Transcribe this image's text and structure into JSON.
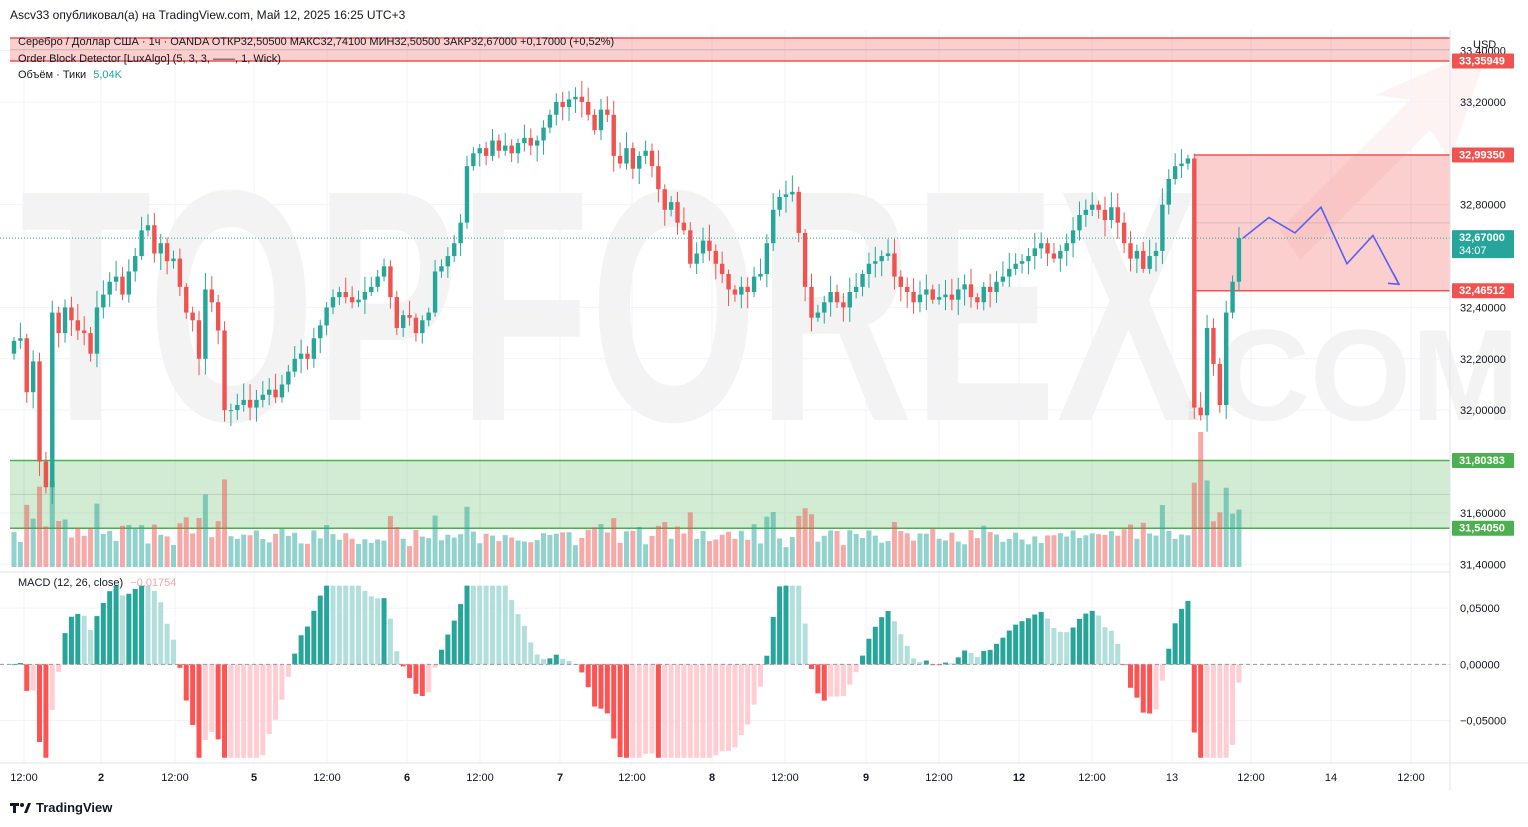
{
  "header": "Ascv33 опубликовал(а) на TradingView.com, Май 12, 2025 16:25 UTC+3",
  "legend": {
    "main": "Серебро / Доллар США · 1ч · OANDA  ОТКР32,50500  МАКС32,74100  МИН32,50500  ЗАКР32,67000  +0,17000 (+0,52%)",
    "indicator": "Order Block Detector [LuxAlgo] (5, 3, 3, ——, 1, Wick)",
    "volume_label": "Объём · Тики",
    "volume_value": "5,04K",
    "macd_label": "MACD (12, 26, close)",
    "macd_value": "−0,01754"
  },
  "footer": {
    "brand": "TradingView"
  },
  "watermark": {
    "text": "TOPFOREX",
    "suffix": ".COM"
  },
  "colors": {
    "up": "#26a69a",
    "down": "#ef5350",
    "bear_zone": "#ef5350",
    "bull_zone": "#4caf50",
    "arrow": "#5a5ff0"
  },
  "chart_data": {
    "type": "candlestick",
    "currency": "USD",
    "ylim": [
      31.37,
      33.48
    ],
    "macd_ylim": [
      -0.085,
      0.075
    ],
    "y_ticks": [
      "33,40000",
      "33,20000",
      "32,80000",
      "32,40000",
      "32,20000",
      "32,00000",
      "31,60000",
      "31,40000"
    ],
    "y_tick_values": [
      33.4,
      33.2,
      32.8,
      32.4,
      32.2,
      32.0,
      31.6,
      31.4
    ],
    "macd_ticks": [
      "0,05000",
      "0,00000",
      "−0,05000"
    ],
    "macd_tick_values": [
      0.05,
      0.0,
      -0.05
    ],
    "x_labels": [
      "12:00",
      "2",
      "12:00",
      "5",
      "12:00",
      "6",
      "12:00",
      "7",
      "12:00",
      "8",
      "12:00",
      "9",
      "12:00",
      "12",
      "12:00",
      "13",
      "12:00",
      "14",
      "12:00"
    ],
    "x_label_bold": [
      false,
      true,
      false,
      true,
      false,
      true,
      false,
      true,
      false,
      true,
      false,
      true,
      false,
      true,
      false,
      false,
      false,
      false,
      false
    ],
    "price_labels": [
      {
        "text": "33,35949",
        "value": 33.35949,
        "color": "#ef5350"
      },
      {
        "text": "32,99350",
        "value": 32.9935,
        "color": "#ef5350"
      },
      {
        "text": "32,67000",
        "sub": "34:07",
        "value": 32.67,
        "color": "#26a69a"
      },
      {
        "text": "32,46512",
        "value": 32.46512,
        "color": "#ef5350"
      },
      {
        "text": "31,80383",
        "value": 31.80383,
        "color": "#4caf50"
      },
      {
        "text": "31,54050",
        "value": 31.5405,
        "color": "#4caf50"
      }
    ],
    "bear_zones": [
      [
        33.35949,
        33.5
      ],
      [
        32.46512,
        32.9935
      ]
    ],
    "bull_zones": [
      [
        31.5405,
        31.80383
      ]
    ],
    "last_price": 32.67,
    "forecast_path": [
      32.67,
      32.75,
      32.69,
      32.79,
      32.57,
      32.68,
      32.49
    ],
    "closes": [
      32.27,
      32.28,
      32.07,
      32.19,
      31.8,
      31.7,
      32.38,
      32.3,
      32.4,
      32.35,
      32.31,
      32.3,
      32.22,
      32.4,
      32.45,
      32.5,
      32.52,
      32.45,
      32.54,
      32.6,
      32.7,
      32.72,
      32.61,
      32.65,
      32.58,
      32.59,
      32.48,
      32.38,
      32.35,
      32.2,
      32.47,
      32.42,
      32.31,
      32.0,
      32.0,
      32.02,
      32.04,
      32.01,
      32.04,
      32.06,
      32.08,
      32.05,
      32.1,
      32.15,
      32.2,
      32.22,
      32.2,
      32.28,
      32.33,
      32.4,
      32.44,
      32.46,
      32.44,
      32.42,
      32.43,
      32.46,
      32.48,
      32.52,
      32.56,
      32.44,
      32.32,
      32.37,
      32.36,
      32.3,
      32.35,
      32.38,
      32.54,
      32.56,
      32.6,
      32.65,
      32.73,
      32.95,
      33.0,
      33.02,
      32.99,
      33.05,
      33.01,
      33.03,
      33.0,
      33.04,
      33.06,
      33.03,
      33.05,
      33.1,
      33.15,
      33.2,
      33.18,
      33.21,
      33.22,
      33.2,
      33.15,
      33.09,
      33.17,
      33.15,
      32.99,
      32.96,
      33.02,
      32.94,
      32.99,
      33.01,
      32.95,
      32.86,
      32.78,
      32.81,
      32.73,
      32.7,
      32.57,
      32.61,
      32.66,
      32.62,
      32.57,
      32.53,
      32.47,
      32.45,
      32.48,
      32.46,
      32.52,
      32.53,
      32.65,
      32.78,
      32.83,
      32.84,
      32.85,
      32.69,
      32.48,
      32.36,
      32.38,
      32.42,
      32.46,
      32.42,
      32.4,
      32.46,
      32.48,
      32.53,
      32.57,
      32.58,
      32.6,
      32.61,
      32.52,
      32.48,
      32.46,
      32.42,
      32.45,
      32.47,
      32.43,
      32.44,
      32.45,
      32.43,
      32.47,
      32.49,
      32.44,
      32.42,
      32.48,
      32.46,
      32.5,
      32.52,
      32.55,
      32.57,
      32.58,
      32.6,
      32.63,
      32.65,
      32.61,
      32.59,
      32.62,
      32.65,
      32.7,
      32.76,
      32.78,
      32.8,
      32.78,
      32.74,
      32.79,
      32.73,
      32.65,
      32.59,
      32.62,
      32.55,
      32.6,
      32.62,
      32.8,
      32.9,
      32.95,
      32.96,
      32.98,
      32.01,
      31.98,
      32.32,
      32.18,
      32.02,
      32.38,
      32.5,
      32.67
    ]
  }
}
